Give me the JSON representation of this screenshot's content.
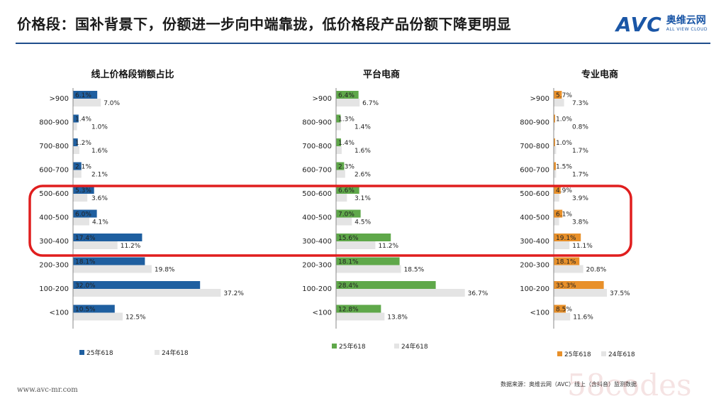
{
  "page": {
    "title": "价格段：国补背景下，份额进一步向中端靠拢，低价格段产品份额下降更明显",
    "logo_text": "AVC",
    "logo_cn": "奥维云网",
    "logo_en": "ALL VIEW CLOUD",
    "footer_url": "www.avc-mr.com",
    "source": "数据来源：奥维云网（AVC）线上（含抖音）监测数据",
    "corner_watermark": "58codes"
  },
  "colors": {
    "blue": "#1f5fa0",
    "green": "#5fa84a",
    "orange": "#e8902a",
    "gray": "#e4e4e4",
    "highlight": "#e01e1e",
    "title_rule": "#1f4e8c"
  },
  "chart_data": [
    {
      "type": "bar",
      "orientation": "horizontal",
      "title": "线上价格段销额占比",
      "categories": [
        ">900",
        "800-900",
        "700-800",
        "600-700",
        "500-600",
        "400-500",
        "300-400",
        "200-300",
        "100-200",
        "<100"
      ],
      "series": [
        {
          "name": "25年618",
          "color": "#1f5fa0",
          "values": [
            6.1,
            1.4,
            1.2,
            2.1,
            5.3,
            6.0,
            17.4,
            18.1,
            32.0,
            10.5
          ]
        },
        {
          "name": "24年618",
          "color": "#e4e4e4",
          "values": [
            7.0,
            1.0,
            1.6,
            2.1,
            3.6,
            4.1,
            11.2,
            19.8,
            37.2,
            12.5
          ]
        }
      ],
      "legend": "bottom"
    },
    {
      "type": "bar",
      "orientation": "horizontal",
      "title": "平台电商",
      "categories": [
        ">900",
        "800-900",
        "700-800",
        "600-700",
        "500-600",
        "400-500",
        "300-400",
        "200-300",
        "100-200",
        "<100"
      ],
      "series": [
        {
          "name": "25年618",
          "color": "#5fa84a",
          "values": [
            6.4,
            1.3,
            1.4,
            2.3,
            6.6,
            7.0,
            15.6,
            18.1,
            28.4,
            12.8
          ]
        },
        {
          "name": "24年618",
          "color": "#e4e4e4",
          "values": [
            6.7,
            1.4,
            1.6,
            2.6,
            3.1,
            4.5,
            11.2,
            18.5,
            36.7,
            13.8
          ]
        }
      ],
      "legend": "bottom"
    },
    {
      "type": "bar",
      "orientation": "horizontal",
      "title": "专业电商",
      "categories": [
        ">900",
        "800-900",
        "700-800",
        "600-700",
        "500-600",
        "400-500",
        "300-400",
        "200-300",
        "100-200",
        "<100"
      ],
      "series": [
        {
          "name": "25年618",
          "color": "#e8902a",
          "values": [
            5.7,
            1.0,
            1.0,
            1.5,
            4.9,
            6.1,
            19.1,
            18.1,
            35.3,
            8.5
          ]
        },
        {
          "name": "24年618",
          "color": "#e4e4e4",
          "values": [
            7.3,
            0.8,
            1.7,
            1.7,
            3.9,
            3.8,
            11.1,
            20.8,
            37.5,
            11.6
          ]
        }
      ],
      "legend": "bottom"
    }
  ]
}
